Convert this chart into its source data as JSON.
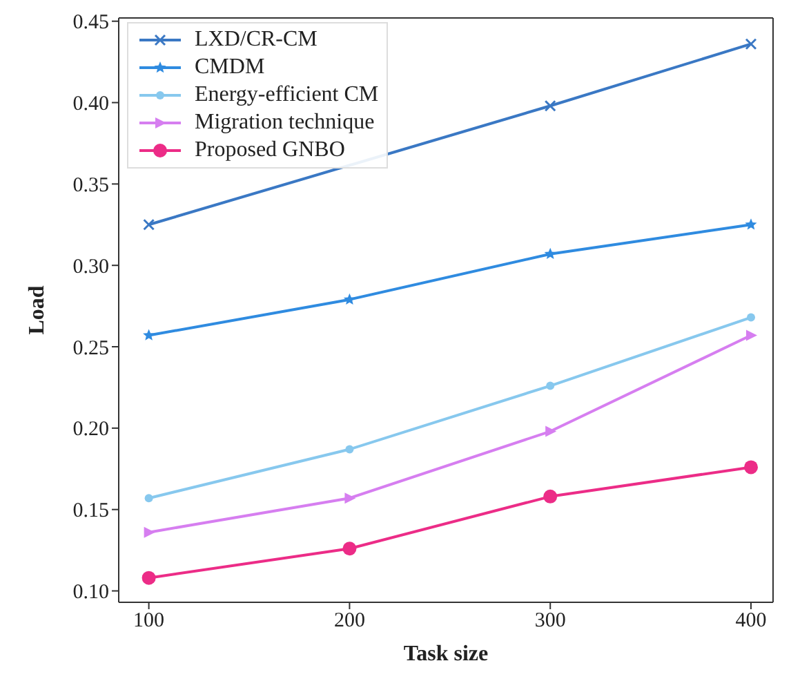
{
  "chart_data": {
    "type": "line",
    "xlabel": "Task size",
    "ylabel": "Load",
    "x": [
      100,
      200,
      300,
      400
    ],
    "xlim": [
      85,
      411
    ],
    "xticks": [
      100,
      200,
      300,
      400
    ],
    "ylim": [
      0.093,
      0.452
    ],
    "yticks": [
      {
        "value": 0.1,
        "label": "0.10"
      },
      0.15,
      {
        "value": 0.2,
        "label": "0.20"
      },
      0.25,
      {
        "value": 0.3,
        "label": "0.30"
      },
      0.35,
      {
        "value": 0.4,
        "label": "0.40"
      },
      0.45
    ],
    "series": [
      {
        "name": "LXD/CR-CM",
        "color": "#3a78c4",
        "marker": "cross",
        "values": [
          0.325,
          null,
          0.398,
          0.436
        ]
      },
      {
        "name": "CMDM",
        "color": "#2f8be0",
        "marker": "star",
        "values": [
          0.257,
          0.279,
          0.307,
          0.325
        ]
      },
      {
        "name": "Energy-efficient CM",
        "color": "#87c8ee",
        "marker": "circle",
        "values": [
          0.157,
          0.187,
          0.226,
          0.268
        ]
      },
      {
        "name": "Migration technique",
        "color": "#d67ef0",
        "marker": "triangle",
        "values": [
          0.136,
          0.157,
          0.198,
          0.257
        ]
      },
      {
        "name": "Proposed GNBO",
        "color": "#ec2c87",
        "marker": "circle",
        "values": [
          0.108,
          0.126,
          0.158,
          0.176
        ]
      }
    ],
    "grid": false,
    "legend": "top left",
    "line_style": "solid"
  }
}
